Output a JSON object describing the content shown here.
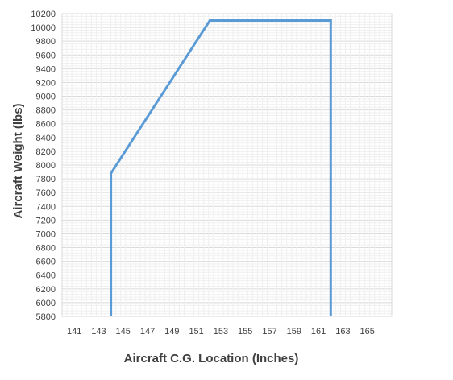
{
  "chart_data": {
    "type": "line",
    "xlabel": "Aircraft C.G. Location (Inches)",
    "ylabel": "Aircraft Weight (lbs)",
    "xlim": [
      140,
      167
    ],
    "ylim": [
      5800,
      10200
    ],
    "x_ticks": [
      "141",
      "143",
      "145",
      "147",
      "149",
      "151",
      "153",
      "155",
      "157",
      "159",
      "161",
      "163",
      "165"
    ],
    "y_ticks": [
      "5800",
      "6000",
      "6200",
      "6400",
      "6600",
      "6800",
      "7000",
      "7200",
      "7400",
      "7600",
      "7800",
      "8000",
      "8200",
      "8400",
      "8600",
      "8800",
      "9000",
      "9200",
      "9400",
      "9600",
      "9800",
      "10000",
      "10200"
    ],
    "grid": true,
    "series": [
      {
        "color": "#5b9bd5",
        "points": [
          {
            "x": 144.0,
            "y": 5800
          },
          {
            "x": 144.0,
            "y": 7880
          },
          {
            "x": 152.1,
            "y": 10100
          },
          {
            "x": 162.0,
            "y": 10100
          },
          {
            "x": 162.0,
            "y": 5800
          }
        ]
      }
    ]
  }
}
